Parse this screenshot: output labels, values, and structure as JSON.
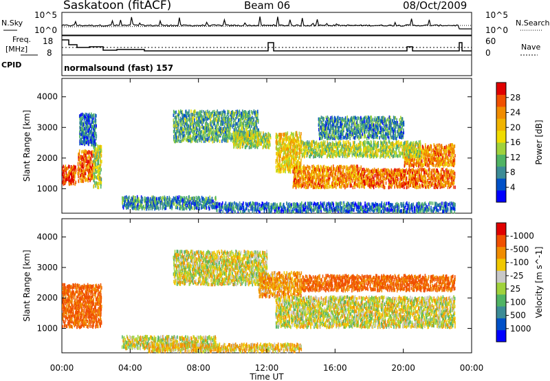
{
  "header": {
    "station": "Saskatoon (fitACF)",
    "beam": "Beam 06",
    "date": "08/Oct/2009"
  },
  "top_panels": {
    "noise": {
      "left_label": "N.Sky",
      "left_ticks": [
        "10^5",
        "10^0"
      ],
      "right_ticks": [
        "10^5",
        "10^0"
      ],
      "right_label": "N.Search"
    },
    "freq": {
      "left_label_line1": "Freq.",
      "left_label_line2": "[MHz]",
      "left_ticks": [
        "18",
        "8"
      ],
      "right_ticks": [
        "60",
        "0"
      ],
      "right_label": "Nave"
    },
    "cpid_label": "CPID",
    "cpid_text": "normalsound (fast) 157"
  },
  "chart_data": [
    {
      "type": "heatmap",
      "title": "",
      "ylabel": "Slant Range [km]",
      "xlabel": "",
      "ylim": [
        200,
        4600
      ],
      "yticks": [
        "1000",
        "2000",
        "3000",
        "4000"
      ],
      "colorbar": {
        "label": "Power [dB]",
        "ticks": [
          "4",
          "8",
          "12",
          "16",
          "20",
          "24",
          "28"
        ],
        "colors": [
          "#0000ff",
          "#0050c8",
          "#3c8c96",
          "#50b464",
          "#a0d23c",
          "#f0dc00",
          "#f0b400",
          "#f08c00",
          "#f05000",
          "#e00000"
        ]
      },
      "regions": [
        {
          "t": [
            0.0,
            0.8
          ],
          "r": [
            1100,
            1700
          ],
          "value": 26
        },
        {
          "t": [
            0.9,
            1.8
          ],
          "r": [
            1200,
            2200
          ],
          "value": 24
        },
        {
          "t": [
            1.8,
            2.3
          ],
          "r": [
            1000,
            2400
          ],
          "value": 14
        },
        {
          "t": [
            1.0,
            2.0
          ],
          "r": [
            2400,
            3400
          ],
          "value": 6
        },
        {
          "t": [
            6.5,
            11.5
          ],
          "r": [
            2500,
            3500
          ],
          "value": 10
        },
        {
          "t": [
            10.0,
            12.2
          ],
          "r": [
            2300,
            2800
          ],
          "value": 14
        },
        {
          "t": [
            12.5,
            14.0
          ],
          "r": [
            1500,
            2800
          ],
          "value": 18
        },
        {
          "t": [
            13.5,
            17.5
          ],
          "r": [
            1000,
            1700
          ],
          "value": 22
        },
        {
          "t": [
            17.5,
            23.0
          ],
          "r": [
            1000,
            1600
          ],
          "value": 24
        },
        {
          "t": [
            20.0,
            23.0
          ],
          "r": [
            1700,
            2400
          ],
          "value": 22
        },
        {
          "t": [
            14.0,
            21.0
          ],
          "r": [
            2000,
            2500
          ],
          "value": 14
        },
        {
          "t": [
            15.0,
            20.0
          ],
          "r": [
            2600,
            3300
          ],
          "value": 8
        },
        {
          "t": [
            3.5,
            9.0
          ],
          "r": [
            300,
            700
          ],
          "value": 8
        },
        {
          "t": [
            9.0,
            23.0
          ],
          "r": [
            200,
            500
          ],
          "value": 6
        }
      ]
    },
    {
      "type": "heatmap",
      "title": "",
      "ylabel": "Slant Range [km]",
      "xlabel": "Time UT",
      "ylim": [
        200,
        4600
      ],
      "yticks": [
        "1000",
        "2000",
        "3000",
        "4000"
      ],
      "xlim": [
        0,
        24
      ],
      "xticks": [
        "00:00",
        "04:00",
        "08:00",
        "12:00",
        "16:00",
        "20:00",
        "00:00"
      ],
      "colorbar": {
        "label": "Velocity [m s^-1]",
        "ticks": [
          "1000",
          "500",
          "100",
          "25",
          "-25",
          "-100",
          "-500",
          "-1000"
        ],
        "colors": [
          "#0000ff",
          "#0050c8",
          "#3c8c96",
          "#50b464",
          "#a0d23c",
          "#c8c8c8",
          "#f0c800",
          "#f08c00",
          "#f05000",
          "#e00000"
        ]
      },
      "regions": [
        {
          "t": [
            0.0,
            2.3
          ],
          "r": [
            1000,
            2400
          ],
          "value": -300
        },
        {
          "t": [
            6.5,
            12.0
          ],
          "r": [
            2400,
            3500
          ],
          "value": 0
        },
        {
          "t": [
            11.5,
            14.0
          ],
          "r": [
            2000,
            2800
          ],
          "value": -150
        },
        {
          "t": [
            12.5,
            23.0
          ],
          "r": [
            1000,
            2000
          ],
          "value": 0
        },
        {
          "t": [
            14.0,
            23.0
          ],
          "r": [
            2200,
            2700
          ],
          "value": -300
        },
        {
          "t": [
            3.5,
            9.0
          ],
          "r": [
            300,
            700
          ],
          "value": 0
        },
        {
          "t": [
            5.0,
            14.0
          ],
          "r": [
            200,
            450
          ],
          "value": -60
        }
      ]
    }
  ]
}
